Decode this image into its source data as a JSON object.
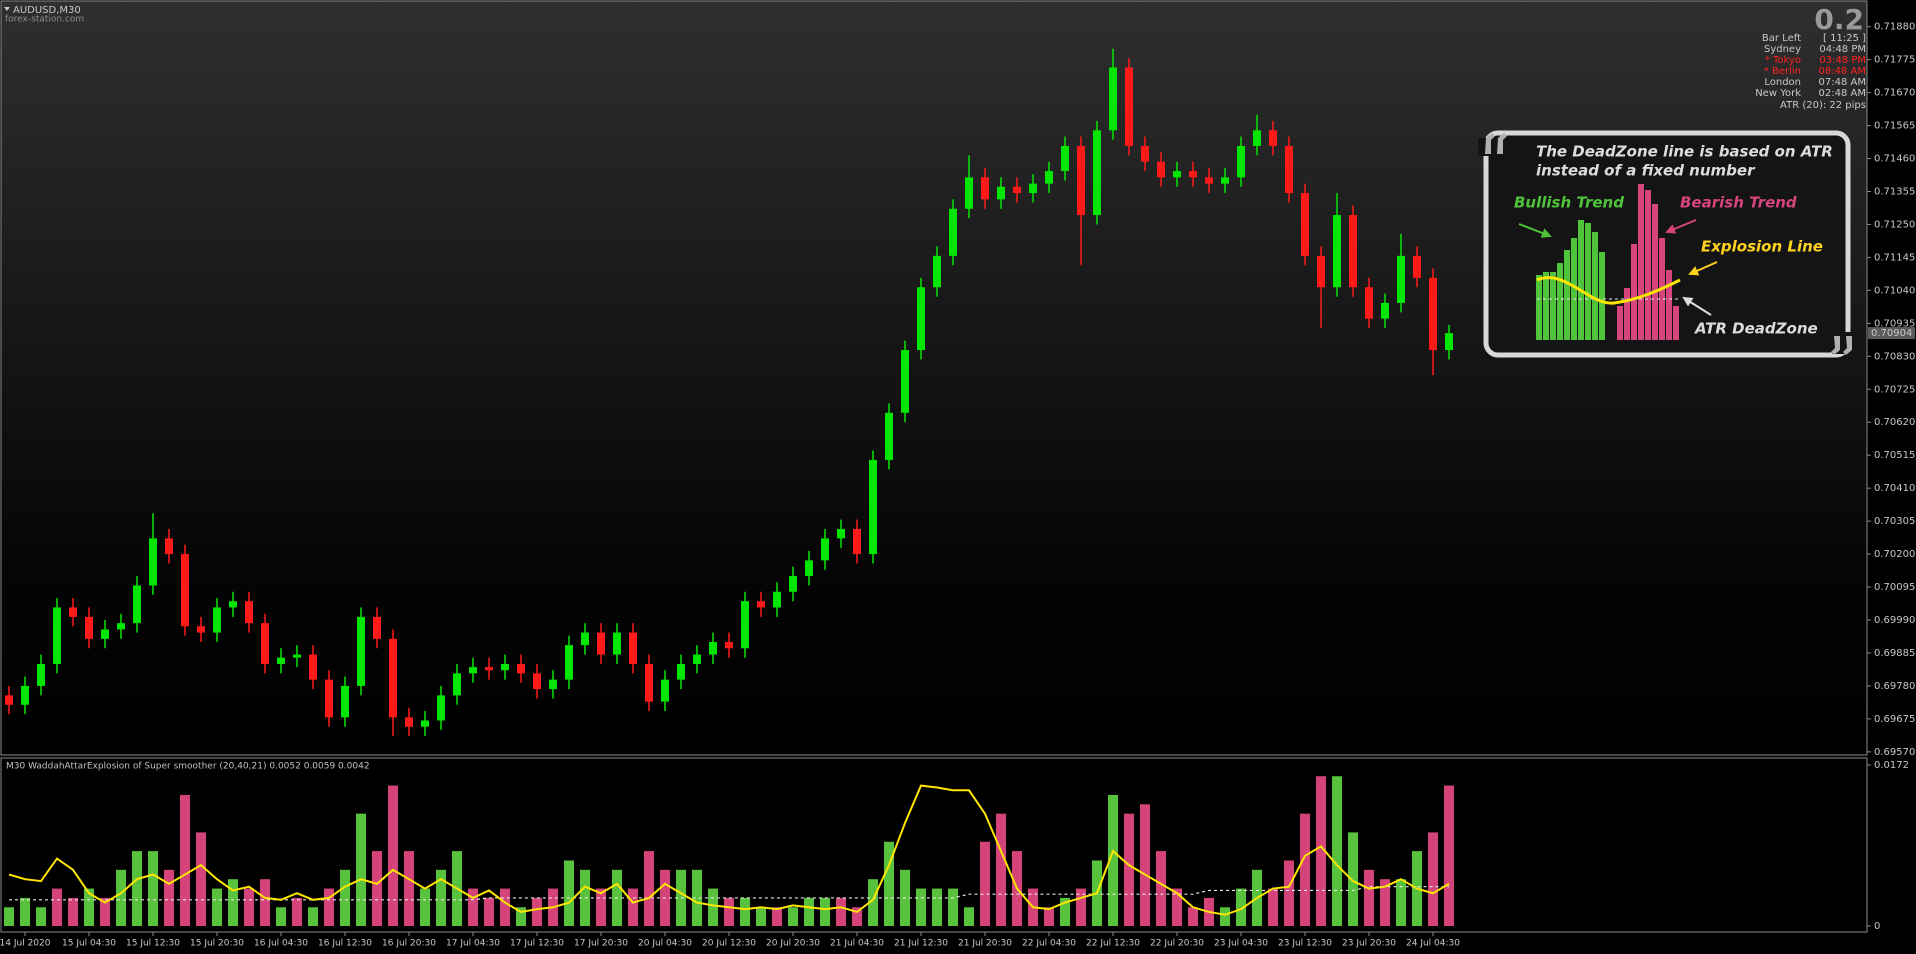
{
  "window": {
    "symbol": "AUDUSD,M30",
    "source": "forex-station.com"
  },
  "info_panel": {
    "spread": "0.2",
    "rows": [
      {
        "label": "Bar Left",
        "time": "[ 11:25 ]",
        "color": "#c8c8c8"
      },
      {
        "label": "Sydney",
        "time": "04:48 PM",
        "color": "#c8c8c8"
      },
      {
        "label": "* Tokyo",
        "time": "03:48 PM",
        "color": "#ff2020"
      },
      {
        "label": "* Berlin",
        "time": "08:48 AM",
        "color": "#ff2020"
      },
      {
        "label": "London",
        "time": "07:48 AM",
        "color": "#c8c8c8"
      },
      {
        "label": "New York",
        "time": "02:48 AM",
        "color": "#c8c8c8"
      }
    ],
    "atr": "ATR (20): 22 pips"
  },
  "callout": {
    "note": [
      "The DeadZone line is based on ATR",
      "instead of a fixed number"
    ],
    "bullish": "Bullish Trend",
    "bearish": "Bearish Trend",
    "explosion": "Explosion Line",
    "deadzone": "ATR DeadZone"
  },
  "chart_data": [
    {
      "type": "candlestick",
      "categories": [
        null,
        "14 Jul 2020",
        null,
        null,
        null,
        "15 Jul 04:30",
        null,
        null,
        null,
        "15 Jul 12:30",
        null,
        null,
        null,
        "15 Jul 20:30",
        null,
        null,
        null,
        "16 Jul 04:30",
        null,
        null,
        null,
        "16 Jul 12:30",
        null,
        null,
        null,
        "16 Jul 20:30",
        null,
        null,
        null,
        "17 Jul 04:30",
        null,
        null,
        null,
        "17 Jul 12:30",
        null,
        null,
        null,
        "17 Jul 20:30",
        null,
        null,
        null,
        "20 Jul 04:30",
        null,
        null,
        null,
        "20 Jul 12:30",
        null,
        null,
        null,
        "20 Jul 20:30",
        null,
        null,
        null,
        "21 Jul 04:30",
        null,
        null,
        null,
        "21 Jul 12:30",
        null,
        null,
        null,
        "21 Jul 20:30",
        null,
        null,
        null,
        "22 Jul 04:30",
        null,
        null,
        null,
        "22 Jul 12:30",
        null,
        null,
        null,
        "22 Jul 20:30",
        null,
        null,
        null,
        "23 Jul 04:30",
        null,
        null,
        null,
        "23 Jul 12:30",
        null,
        null,
        null,
        "23 Jul 20:30",
        null,
        null,
        null,
        "24 Jul 04:30",
        null
      ],
      "open": [
        0.6975,
        0.6972,
        0.6978,
        0.6985,
        0.7003,
        0.7,
        0.6993,
        0.6996,
        0.6998,
        0.701,
        0.7025,
        0.702,
        0.6997,
        0.6995,
        0.7003,
        0.7005,
        0.6998,
        0.6985,
        0.6987,
        0.6988,
        0.698,
        0.6968,
        0.6978,
        0.7,
        0.6993,
        0.6968,
        0.6965,
        0.6967,
        0.6975,
        0.6982,
        0.6984,
        0.6983,
        0.6985,
        0.6982,
        0.6977,
        0.698,
        0.6991,
        0.6995,
        0.6988,
        0.6995,
        0.6985,
        0.6973,
        0.698,
        0.6985,
        0.6988,
        0.6992,
        0.699,
        0.7005,
        0.7003,
        0.7008,
        0.7013,
        0.7018,
        0.7025,
        0.7028,
        0.702,
        0.705,
        0.7065,
        0.7085,
        0.7105,
        0.7115,
        0.713,
        0.714,
        0.7133,
        0.7137,
        0.7135,
        0.7138,
        0.7142,
        0.715,
        0.7128,
        0.7155,
        0.7175,
        0.715,
        0.7145,
        0.714,
        0.7142,
        0.714,
        0.7138,
        0.714,
        0.715,
        0.7155,
        0.715,
        0.7135,
        0.7115,
        0.7105,
        0.7128,
        0.7105,
        0.7095,
        0.71,
        0.7115,
        0.7108,
        0.7085
      ],
      "high": [
        0.6978,
        0.6981,
        0.6988,
        0.7006,
        0.7006,
        0.7003,
        0.6999,
        0.7001,
        0.7013,
        0.7033,
        0.7028,
        0.7023,
        0.7,
        0.7006,
        0.7008,
        0.7008,
        0.7001,
        0.699,
        0.6991,
        0.6991,
        0.6983,
        0.6981,
        0.7003,
        0.7003,
        0.6996,
        0.6971,
        0.697,
        0.6978,
        0.6985,
        0.6987,
        0.6987,
        0.6988,
        0.6988,
        0.6985,
        0.6983,
        0.6994,
        0.6998,
        0.6998,
        0.6998,
        0.6998,
        0.6988,
        0.6983,
        0.6988,
        0.6991,
        0.6995,
        0.6995,
        0.7008,
        0.7008,
        0.7011,
        0.7016,
        0.7021,
        0.7028,
        0.7031,
        0.7031,
        0.7053,
        0.7068,
        0.7088,
        0.7108,
        0.7118,
        0.7133,
        0.7147,
        0.7143,
        0.714,
        0.714,
        0.7141,
        0.7145,
        0.7153,
        0.7153,
        0.7158,
        0.7181,
        0.7178,
        0.7153,
        0.7148,
        0.7145,
        0.7145,
        0.7143,
        0.7143,
        0.7153,
        0.716,
        0.7158,
        0.7153,
        0.7138,
        0.7118,
        0.7135,
        0.7131,
        0.7108,
        0.7103,
        0.7122,
        0.7118,
        0.7111,
        0.7093
      ],
      "low": [
        0.6969,
        0.6969,
        0.6975,
        0.6982,
        0.6997,
        0.699,
        0.699,
        0.6993,
        0.6995,
        0.7007,
        0.7017,
        0.6994,
        0.6992,
        0.6992,
        0.7,
        0.6995,
        0.6982,
        0.6982,
        0.6984,
        0.6977,
        0.6965,
        0.6965,
        0.6975,
        0.699,
        0.6962,
        0.6962,
        0.6962,
        0.6964,
        0.6972,
        0.6979,
        0.698,
        0.698,
        0.6979,
        0.6974,
        0.6974,
        0.6977,
        0.6988,
        0.6985,
        0.6985,
        0.6982,
        0.697,
        0.697,
        0.6977,
        0.6982,
        0.6985,
        0.6987,
        0.6987,
        0.7,
        0.7,
        0.7005,
        0.701,
        0.7015,
        0.7022,
        0.7017,
        0.7017,
        0.7047,
        0.7062,
        0.7082,
        0.7102,
        0.7112,
        0.7127,
        0.713,
        0.713,
        0.7132,
        0.7132,
        0.7135,
        0.7139,
        0.7112,
        0.7125,
        0.7152,
        0.7147,
        0.7142,
        0.7137,
        0.7137,
        0.7137,
        0.7135,
        0.7135,
        0.7137,
        0.7147,
        0.7147,
        0.7132,
        0.7112,
        0.7092,
        0.7102,
        0.7102,
        0.7092,
        0.7092,
        0.7097,
        0.7105,
        0.7077,
        0.7082
      ],
      "close": [
        0.6972,
        0.6978,
        0.6985,
        0.7003,
        0.7,
        0.6993,
        0.6996,
        0.6998,
        0.701,
        0.7025,
        0.702,
        0.6997,
        0.6995,
        0.7003,
        0.7005,
        0.6998,
        0.6985,
        0.6987,
        0.6988,
        0.698,
        0.6968,
        0.6978,
        0.7,
        0.6993,
        0.6968,
        0.6965,
        0.6967,
        0.6975,
        0.6982,
        0.6984,
        0.6983,
        0.6985,
        0.6982,
        0.6977,
        0.698,
        0.6991,
        0.6995,
        0.6988,
        0.6995,
        0.6985,
        0.6973,
        0.698,
        0.6985,
        0.6988,
        0.6992,
        0.699,
        0.7005,
        0.7003,
        0.7008,
        0.7013,
        0.7018,
        0.7025,
        0.7028,
        0.702,
        0.705,
        0.7065,
        0.7085,
        0.7105,
        0.7115,
        0.713,
        0.714,
        0.7133,
        0.7137,
        0.7135,
        0.7138,
        0.7142,
        0.715,
        0.7128,
        0.7155,
        0.7175,
        0.715,
        0.7145,
        0.714,
        0.7142,
        0.714,
        0.7138,
        0.714,
        0.715,
        0.7155,
        0.715,
        0.7135,
        0.7115,
        0.7105,
        0.7128,
        0.7105,
        0.7095,
        0.71,
        0.7115,
        0.7108,
        0.7085,
        0.70904
      ],
      "up_color": "#00e600",
      "down_color": "#ff1a1a",
      "ylim": [
        0.6956,
        0.71965
      ],
      "yticks": [
        {
          "value": 0.7188,
          "label": "0.71880"
        },
        0.71775,
        {
          "value": 0.7167,
          "label": "0.71670"
        },
        0.71565,
        {
          "value": 0.7146,
          "label": "0.71460"
        },
        0.71355,
        {
          "value": 0.7125,
          "label": "0.71250"
        },
        0.71145,
        {
          "value": 0.7104,
          "label": "0.71040"
        },
        0.70935,
        {
          "value": 0.7083,
          "label": "0.70830"
        },
        0.70725,
        {
          "value": 0.7062,
          "label": "0.70620"
        },
        0.70515,
        {
          "value": 0.7041,
          "label": "0.70410"
        },
        0.70305,
        {
          "value": 0.702,
          "label": "0.70200"
        },
        0.70095,
        {
          "value": 0.6999,
          "label": "0.69990"
        },
        0.69885,
        {
          "value": 0.6978,
          "label": "0.69780"
        },
        0.69675,
        {
          "value": 0.6957,
          "label": "0.69570"
        }
      ]
    },
    {
      "type": "bar",
      "title": "M30  WaddahAttarExplosion of Super smoother (20,40,21) 0.0052 0.0059 0.0042",
      "values": [
        0.002,
        0.003,
        0.002,
        0.004,
        0.003,
        0.004,
        0.003,
        0.006,
        0.008,
        0.008,
        0.006,
        0.014,
        0.01,
        0.004,
        0.005,
        0.004,
        0.005,
        0.002,
        0.003,
        0.002,
        0.004,
        0.006,
        0.012,
        0.008,
        0.015,
        0.008,
        0.004,
        0.006,
        0.008,
        0.004,
        0.003,
        0.004,
        0.002,
        0.003,
        0.004,
        0.007,
        0.006,
        0.004,
        0.006,
        0.004,
        0.008,
        0.006,
        0.006,
        0.006,
        0.004,
        0.003,
        0.003,
        0.002,
        0.002,
        0.002,
        0.003,
        0.003,
        0.003,
        0.002,
        0.005,
        0.009,
        0.006,
        0.004,
        0.004,
        0.004,
        0.002,
        0.009,
        0.012,
        0.008,
        0.004,
        0.002,
        0.003,
        0.004,
        0.007,
        0.014,
        0.012,
        0.013,
        0.008,
        0.004,
        0.002,
        0.003,
        0.002,
        0.004,
        0.006,
        0.004,
        0.007,
        0.012,
        0.016,
        0.016,
        0.01,
        0.006,
        0.005,
        0.005,
        0.008,
        0.01,
        0.015
      ],
      "colors": [
        "#58c23c",
        "#58c23c",
        "#58c23c",
        "#d4447a",
        "#d4447a",
        "#58c23c",
        "#d4447a",
        "#58c23c",
        "#58c23c",
        "#58c23c",
        "#d4447a",
        "#d4447a",
        "#d4447a",
        "#58c23c",
        "#58c23c",
        "#d4447a",
        "#d4447a",
        "#58c23c",
        "#d4447a",
        "#58c23c",
        "#d4447a",
        "#58c23c",
        "#58c23c",
        "#d4447a",
        "#d4447a",
        "#d4447a",
        "#58c23c",
        "#58c23c",
        "#58c23c",
        "#d4447a",
        "#d4447a",
        "#d4447a",
        "#58c23c",
        "#d4447a",
        "#d4447a",
        "#58c23c",
        "#58c23c",
        "#d4447a",
        "#58c23c",
        "#d4447a",
        "#d4447a",
        "#d4447a",
        "#58c23c",
        "#58c23c",
        "#58c23c",
        "#d4447a",
        "#58c23c",
        "#58c23c",
        "#d4447a",
        "#58c23c",
        "#58c23c",
        "#58c23c",
        "#d4447a",
        "#d4447a",
        "#58c23c",
        "#58c23c",
        "#58c23c",
        "#58c23c",
        "#58c23c",
        "#58c23c",
        "#58c23c",
        "#d4447a",
        "#d4447a",
        "#d4447a",
        "#d4447a",
        "#d4447a",
        "#58c23c",
        "#d4447a",
        "#58c23c",
        "#58c23c",
        "#d4447a",
        "#d4447a",
        "#d4447a",
        "#d4447a",
        "#d4447a",
        "#d4447a",
        "#58c23c",
        "#58c23c",
        "#58c23c",
        "#d4447a",
        "#d4447a",
        "#d4447a",
        "#d4447a",
        "#58c23c",
        "#58c23c",
        "#d4447a",
        "#d4447a",
        "#58c23c",
        "#58c23c",
        "#d4447a",
        "#d4447a"
      ],
      "explosion_line": {
        "color": "#ffe600",
        "values": [
          0.0055,
          0.005,
          0.0048,
          0.0072,
          0.006,
          0.0035,
          0.0025,
          0.0035,
          0.005,
          0.0055,
          0.0045,
          0.0055,
          0.0065,
          0.005,
          0.0038,
          0.0042,
          0.003,
          0.0028,
          0.0035,
          0.0028,
          0.003,
          0.0042,
          0.005,
          0.0045,
          0.006,
          0.005,
          0.004,
          0.005,
          0.004,
          0.003,
          0.0038,
          0.0025,
          0.0015,
          0.0018,
          0.002,
          0.0025,
          0.0042,
          0.0035,
          0.0045,
          0.0025,
          0.003,
          0.0045,
          0.0035,
          0.0025,
          0.0022,
          0.002,
          0.0018,
          0.002,
          0.0018,
          0.0022,
          0.002,
          0.0018,
          0.002,
          0.0015,
          0.0028,
          0.0065,
          0.011,
          0.015,
          0.0148,
          0.0145,
          0.0145,
          0.012,
          0.008,
          0.004,
          0.002,
          0.0018,
          0.0025,
          0.003,
          0.0035,
          0.008,
          0.0065,
          0.0055,
          0.0045,
          0.0035,
          0.002,
          0.0015,
          0.0012,
          0.0018,
          0.003,
          0.004,
          0.0042,
          0.0075,
          0.0085,
          0.0065,
          0.0048,
          0.004,
          0.0042,
          0.005,
          0.004,
          0.0035,
          0.0045
        ]
      },
      "deadzone_line": {
        "color": "#e8e8e8",
        "values": [
          0.0028,
          0.0028,
          0.0028,
          0.0028,
          0.0028,
          0.0028,
          0.0028,
          0.0028,
          0.0028,
          0.0028,
          0.0028,
          0.0028,
          0.0028,
          0.0028,
          0.0028,
          0.0028,
          0.0028,
          0.0028,
          0.0028,
          0.0028,
          0.0028,
          0.0028,
          0.0028,
          0.0028,
          0.0028,
          0.0028,
          0.0028,
          0.0028,
          0.0028,
          0.0028,
          0.003,
          0.003,
          0.003,
          0.003,
          0.003,
          0.003,
          0.003,
          0.003,
          0.003,
          0.003,
          0.003,
          0.003,
          0.003,
          0.003,
          0.003,
          0.003,
          0.003,
          0.003,
          0.003,
          0.003,
          0.003,
          0.003,
          0.003,
          0.003,
          0.003,
          0.003,
          0.003,
          0.003,
          0.003,
          0.003,
          0.0034,
          0.0034,
          0.0034,
          0.0034,
          0.0034,
          0.0034,
          0.0034,
          0.0034,
          0.0034,
          0.0034,
          0.0034,
          0.0034,
          0.0034,
          0.0034,
          0.0034,
          0.0038,
          0.0038,
          0.0038,
          0.0038,
          0.0038,
          0.0038,
          0.0038,
          0.0038,
          0.0038,
          0.0038,
          0.0042,
          0.0042,
          0.0042,
          0.0042,
          0.0042,
          0.0042
        ]
      },
      "ylim": [
        0,
        0.0172
      ],
      "yticks": [
        0.0172,
        0
      ]
    }
  ]
}
